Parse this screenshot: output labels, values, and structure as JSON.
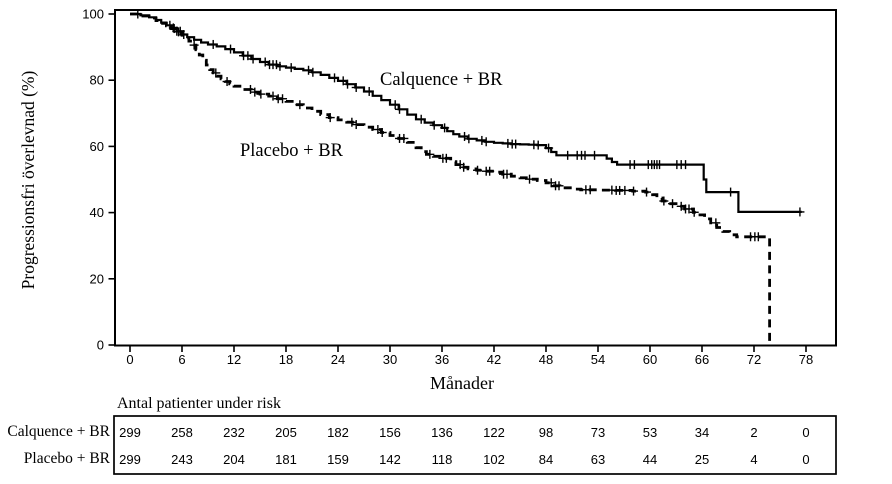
{
  "chart_data": {
    "type": "line",
    "subtype": "kaplan-meier-step",
    "title": "",
    "xlabel": "Månader",
    "ylabel": "Progressionsfri överlevnad (%)",
    "xlim": [
      0,
      81
    ],
    "ylim": [
      0,
      100
    ],
    "xticks": [
      0,
      6,
      12,
      18,
      24,
      30,
      36,
      42,
      48,
      54,
      60,
      66,
      72,
      78
    ],
    "yticks": [
      0,
      20,
      40,
      60,
      80,
      100
    ],
    "grid": false,
    "line_color": "#000000",
    "background": "#ffffff",
    "series": [
      {
        "name": "Calquence + BR",
        "style": "solid",
        "steps": [
          [
            0,
            100
          ],
          [
            1.2,
            99.6
          ],
          [
            2.2,
            99
          ],
          [
            3,
            98.2
          ],
          [
            3.6,
            97.4
          ],
          [
            4.2,
            96.6
          ],
          [
            4.8,
            95.8
          ],
          [
            5.4,
            94.8
          ],
          [
            6,
            93.8
          ],
          [
            6.6,
            93
          ],
          [
            7.4,
            92.2
          ],
          [
            8.2,
            91.4
          ],
          [
            9,
            90.8
          ],
          [
            10,
            90.2
          ],
          [
            11,
            89.4
          ],
          [
            12,
            88.4
          ],
          [
            13,
            87.4
          ],
          [
            14,
            86.4
          ],
          [
            15,
            85.5
          ],
          [
            16,
            84.7
          ],
          [
            17,
            84.2
          ],
          [
            18,
            83.8
          ],
          [
            19,
            83.4
          ],
          [
            20,
            83
          ],
          [
            21,
            82.4
          ],
          [
            22,
            81.6
          ],
          [
            23,
            80.7
          ],
          [
            24,
            79.8
          ],
          [
            25,
            78.8
          ],
          [
            26,
            77.8
          ],
          [
            27,
            76.6
          ],
          [
            28,
            75.3
          ],
          [
            29,
            74
          ],
          [
            30,
            72.6
          ],
          [
            31,
            71.2
          ],
          [
            32,
            69.6
          ],
          [
            33,
            68.2
          ],
          [
            34,
            67.2
          ],
          [
            35,
            66.4
          ],
          [
            36,
            65.6
          ],
          [
            36.6,
            64.6
          ],
          [
            37.3,
            63.7
          ],
          [
            38,
            63
          ],
          [
            39,
            62.3
          ],
          [
            40,
            61.8
          ],
          [
            41,
            61.4
          ],
          [
            42,
            61.1
          ],
          [
            43,
            60.9
          ],
          [
            44,
            60.7
          ],
          [
            45,
            60.6
          ],
          [
            46,
            60.5
          ],
          [
            47,
            60.4
          ],
          [
            48,
            59.5
          ],
          [
            48.6,
            58.3
          ],
          [
            49.2,
            57.3
          ],
          [
            55,
            56.3
          ],
          [
            55.6,
            55.3
          ],
          [
            56.2,
            54.5
          ],
          [
            66.2,
            50
          ],
          [
            66.5,
            46.2
          ],
          [
            70.2,
            40.2
          ],
          [
            77.5,
            40.2
          ]
        ],
        "censor_times": [
          0.9,
          4.6,
          5,
          5.4,
          5.8,
          6.2,
          9.6,
          11.6,
          13.1,
          13.6,
          14.2,
          15.6,
          16.1,
          16.5,
          16.9,
          17.3,
          18.6,
          20.6,
          21.1,
          23.6,
          24.6,
          25.1,
          26.1,
          27.6,
          30.6,
          31.1,
          33.6,
          35.1,
          36.3,
          38.6,
          39.1,
          40.6,
          41.1,
          43.6,
          44.1,
          44.5,
          46.6,
          47.1,
          48.3,
          50.5,
          51.6,
          52.1,
          52.5,
          53.6,
          57.7,
          58.2,
          59.8,
          60.2,
          60.5,
          60.8,
          61.1,
          63.1,
          63.6,
          64.1,
          69.3,
          77.3
        ]
      },
      {
        "name": "Placebo + BR",
        "style": "dashed",
        "steps": [
          [
            0,
            100
          ],
          [
            1.2,
            99.4
          ],
          [
            2.2,
            98.8
          ],
          [
            3,
            98
          ],
          [
            3.6,
            97.2
          ],
          [
            4.2,
            96.4
          ],
          [
            4.8,
            95.6
          ],
          [
            5.4,
            94.6
          ],
          [
            6,
            93.6
          ],
          [
            6.4,
            92.8
          ],
          [
            6.8,
            91.8
          ],
          [
            7.2,
            90.6
          ],
          [
            7.6,
            89.2
          ],
          [
            8,
            87.6
          ],
          [
            8.4,
            86
          ],
          [
            8.8,
            84.6
          ],
          [
            9.2,
            83.2
          ],
          [
            9.6,
            82.2
          ],
          [
            10,
            81.2
          ],
          [
            10.5,
            80.4
          ],
          [
            11,
            79.6
          ],
          [
            11.5,
            78.9
          ],
          [
            12,
            78.2
          ],
          [
            13,
            77.2
          ],
          [
            14,
            76.4
          ],
          [
            15,
            75.8
          ],
          [
            16,
            75.2
          ],
          [
            17,
            74.4
          ],
          [
            18,
            73.6
          ],
          [
            19,
            72.6
          ],
          [
            20,
            71.6
          ],
          [
            21,
            70.6
          ],
          [
            22,
            69.6
          ],
          [
            23,
            68.7
          ],
          [
            24,
            68
          ],
          [
            25,
            67.3
          ],
          [
            26,
            66.6
          ],
          [
            27,
            65.8
          ],
          [
            28,
            65.1
          ],
          [
            29,
            64.2
          ],
          [
            30,
            63.3
          ],
          [
            31,
            62.4
          ],
          [
            32,
            61.2
          ],
          [
            33,
            59.6
          ],
          [
            33.6,
            58.4
          ],
          [
            34.2,
            57.6
          ],
          [
            35,
            57
          ],
          [
            36,
            56.4
          ],
          [
            37,
            55.4
          ],
          [
            37.6,
            54.5
          ],
          [
            38.2,
            53.7
          ],
          [
            39,
            53.2
          ],
          [
            40,
            52.8
          ],
          [
            41,
            52.5
          ],
          [
            42,
            52.2
          ],
          [
            43,
            51.6
          ],
          [
            44,
            51
          ],
          [
            45,
            50.5
          ],
          [
            46,
            50.1
          ],
          [
            47,
            49.7
          ],
          [
            48,
            49
          ],
          [
            48.8,
            48.1
          ],
          [
            49.6,
            47.5
          ],
          [
            51,
            47.1
          ],
          [
            52,
            46.9
          ],
          [
            54,
            46.8
          ],
          [
            56,
            46.7
          ],
          [
            58,
            46.5
          ],
          [
            59.5,
            46.2
          ],
          [
            60.3,
            45.4
          ],
          [
            60.8,
            44.4
          ],
          [
            61.4,
            43.5
          ],
          [
            62.2,
            42.7
          ],
          [
            63,
            41.9
          ],
          [
            64,
            41.1
          ],
          [
            65,
            40.1
          ],
          [
            65.6,
            39.3
          ],
          [
            66.3,
            38.1
          ],
          [
            67,
            36.9
          ],
          [
            67.7,
            35.5
          ],
          [
            68.4,
            34.3
          ],
          [
            69.2,
            33.3
          ],
          [
            70,
            32.7
          ],
          [
            73.8,
            32.7
          ],
          [
            73.8,
            0
          ]
        ],
        "censor_times": [
          5.1,
          5.6,
          7.4,
          9.9,
          11.2,
          13.9,
          14.4,
          15.1,
          16.5,
          17.1,
          17.6,
          19.6,
          23.1,
          25.6,
          26.1,
          28.6,
          29.1,
          31.1,
          31.6,
          34.6,
          36.1,
          36.5,
          38.1,
          38.5,
          40.1,
          41.1,
          41.5,
          43.1,
          43.5,
          46.1,
          48.6,
          49.1,
          49.5,
          52.6,
          53.1,
          55.6,
          56.1,
          56.5,
          57.1,
          58.1,
          59.6,
          61.6,
          62.6,
          63.6,
          64.1,
          64.5,
          65.1,
          67.6,
          71.6,
          72.1,
          72.5
        ]
      }
    ],
    "risk_table": {
      "title": "Antal patienter under risk",
      "time_points": [
        0,
        6,
        12,
        18,
        24,
        30,
        36,
        42,
        48,
        54,
        60,
        66,
        72,
        78
      ],
      "rows": [
        {
          "label": "Calquence + BR",
          "counts": [
            299,
            258,
            232,
            205,
            182,
            156,
            136,
            122,
            98,
            73,
            53,
            34,
            2,
            0
          ]
        },
        {
          "label": "Placebo + BR",
          "counts": [
            299,
            243,
            204,
            181,
            159,
            142,
            118,
            102,
            84,
            63,
            44,
            25,
            4,
            0
          ]
        }
      ]
    }
  }
}
